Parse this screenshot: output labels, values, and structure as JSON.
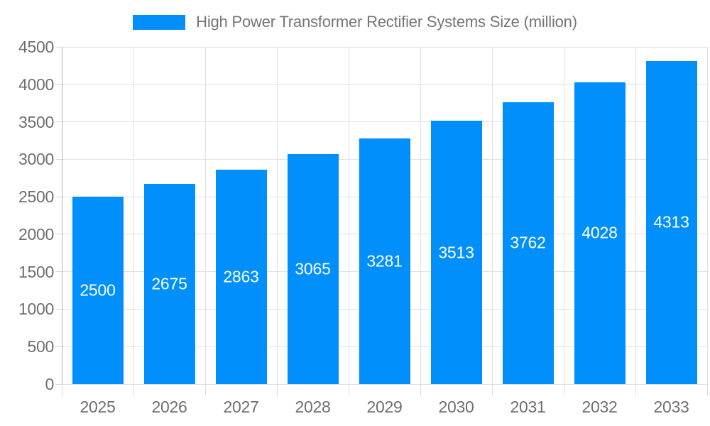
{
  "legend": {
    "label": "High Power Transformer Rectifier Systems Size (million)"
  },
  "chart_data": {
    "type": "bar",
    "title": "High Power Transformer Rectifier Systems Size (million)",
    "categories": [
      "2025",
      "2026",
      "2027",
      "2028",
      "2029",
      "2030",
      "2031",
      "2032",
      "2033"
    ],
    "values": [
      2500,
      2675,
      2863,
      3065,
      3281,
      3513,
      3762,
      4028,
      4313
    ],
    "value_labels": [
      "2500",
      "2675",
      "2863",
      "3065",
      "3281",
      "3513",
      "3762",
      "4028",
      "4313"
    ],
    "xlabel": "",
    "ylabel": "",
    "ylim": [
      0,
      4500
    ],
    "ytick_step": 500,
    "yticks": [
      0,
      500,
      1000,
      1500,
      2000,
      2500,
      3000,
      3500,
      4000,
      4500
    ],
    "grid": true,
    "legend_position": "top"
  },
  "colors": {
    "bar": "#008FFB",
    "grid": "#e0e0e0",
    "axis_line": "#b3b3b3",
    "tick_text": "#6f6f6f",
    "legend_text": "#757575",
    "value_label": "#ffffff",
    "background": "#ffffff"
  }
}
